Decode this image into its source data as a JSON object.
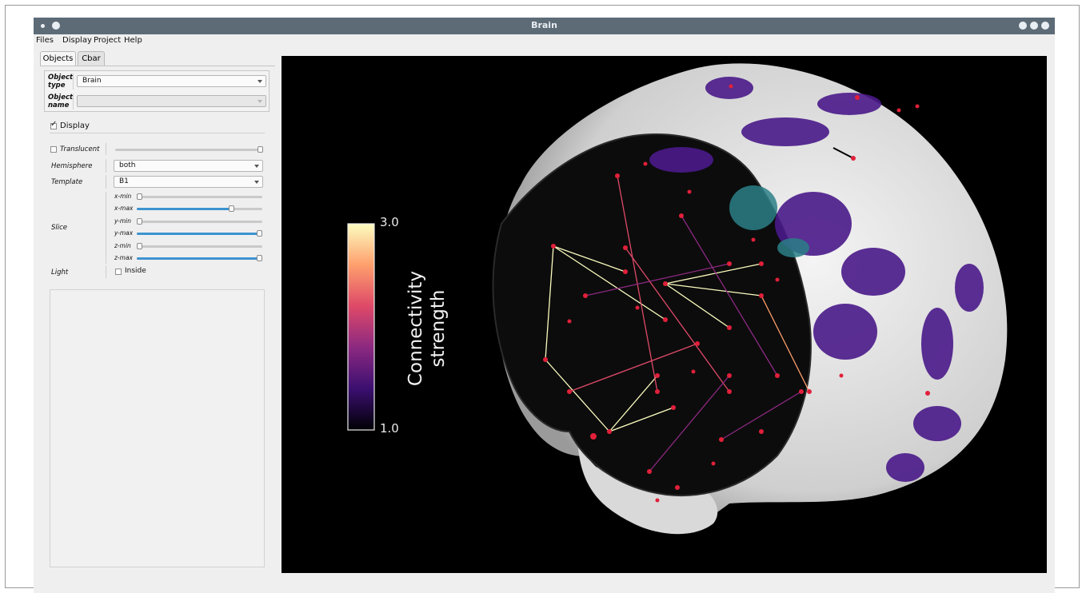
{
  "window": {
    "title": "Brain"
  },
  "menubar": {
    "items": [
      "Files",
      "Display",
      "Project",
      "Help"
    ]
  },
  "tabs": [
    "Objects",
    "Cbar"
  ],
  "object_panel": {
    "object_type_label": "Object\ntype",
    "object_type_value": "Brain",
    "object_name_label": "Object\nname",
    "object_name_value": ""
  },
  "display": {
    "label": "Display",
    "checked": true
  },
  "properties": {
    "translucent_label": "Translucent",
    "translucent_checked": false,
    "translucent_level": 1.0,
    "hemisphere_label": "Hemisphere",
    "hemisphere_value": "both",
    "template_label": "Template",
    "template_value": "B1",
    "slice_label": "Slice",
    "slice": {
      "x_min_label": "x-min",
      "x_min": 0.0,
      "x_max_label": "x-max",
      "x_max": 0.75,
      "y_min_label": "y-min",
      "y_min": 0.0,
      "y_max_label": "y-max",
      "y_max": 1.0,
      "z_min_label": "z-min",
      "z_min": 0.0,
      "z_max_label": "z-max",
      "z_max": 1.0
    },
    "light_label": "Light",
    "inside_label": "Inside",
    "inside_checked": false
  },
  "colorbar": {
    "title_line1": "Connectivity",
    "title_line2": "strength",
    "max_label": "3.0",
    "min_label": "1.0",
    "colors": [
      "#fcfdbf",
      "#fe9f6d",
      "#de4968",
      "#8c2981",
      "#3b0f70",
      "#000004"
    ]
  },
  "colors": {
    "titlebar": "#5d6b77",
    "canvas": "#000000",
    "slider_accent": "#3d93cf",
    "node": "#e0203a",
    "cortex": "#e8e8e8",
    "activation": "#4a1a8a"
  }
}
